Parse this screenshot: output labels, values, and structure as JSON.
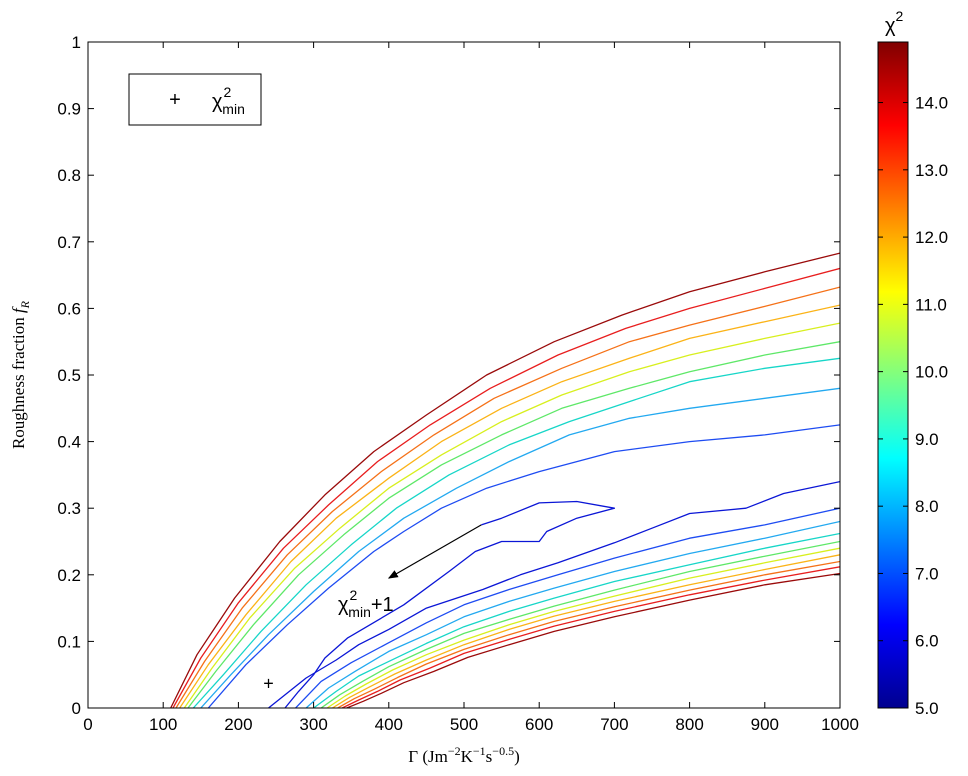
{
  "chart_data": {
    "type": "contour",
    "xlabel": {
      "main": "Γ  (Jm",
      "sup1": "−2",
      "mid1": "K",
      "sup2": "−1",
      "mid2": "s",
      "sup3": "−0.5",
      "end": ")"
    },
    "ylabel": {
      "main": "Roughness fraction ",
      "var": "f",
      "sub": "R"
    },
    "xlim": [
      0,
      1000
    ],
    "ylim": [
      0,
      1
    ],
    "x_ticks": [
      "0",
      "100",
      "200",
      "300",
      "400",
      "500",
      "600",
      "700",
      "800",
      "900",
      "1000"
    ],
    "y_ticks": [
      "0",
      "0.1",
      "0.2",
      "0.3",
      "0.4",
      "0.5",
      "0.6",
      "0.7",
      "0.8",
      "0.9",
      "1"
    ],
    "x_tick_values": [
      0,
      100,
      200,
      300,
      400,
      500,
      600,
      700,
      800,
      900,
      1000
    ],
    "y_tick_values": [
      0,
      0.1,
      0.2,
      0.3,
      0.4,
      0.5,
      0.6,
      0.7,
      0.8,
      0.9,
      1
    ],
    "colorbar": {
      "title": "χ",
      "title_sup": "2",
      "range": [
        5.0,
        14.9
      ],
      "ticks": [
        "5.0",
        "6.0",
        "7.0",
        "8.0",
        "9.0",
        "10.0",
        "11.0",
        "12.0",
        "13.0",
        "14.0"
      ],
      "tick_values": [
        5,
        6,
        7,
        8,
        9,
        10,
        11,
        12,
        13,
        14
      ],
      "colormap": "jet"
    },
    "minimum": {
      "x": 240,
      "y": 0.037,
      "marker": "+"
    },
    "legend": {
      "marker": "+",
      "label": "χ",
      "label_sup": "2",
      "label_sub": "min",
      "placement": "top-left"
    },
    "annotation": {
      "text": "χ",
      "sup": "2",
      "sub": "min",
      "suffix": "+1",
      "arrow_from": [
        523,
        0.275
      ],
      "arrow_to": [
        400,
        0.195
      ]
    },
    "contour_lines": [
      {
        "level": 5.9,
        "color": "#0b16d6",
        "points": [
          [
            240,
            0
          ],
          [
            290,
            0.045
          ],
          [
            330,
            0.072
          ],
          [
            360,
            0.095
          ],
          [
            400,
            0.118
          ],
          [
            450,
            0.15
          ],
          [
            525,
            0.178
          ],
          [
            575,
            0.2
          ],
          [
            625,
            0.218
          ],
          [
            700,
            0.248
          ],
          [
            750,
            0.27
          ],
          [
            800,
            0.292
          ],
          [
            875,
            0.3
          ],
          [
            925,
            0.322
          ],
          [
            1000,
            0.34
          ]
        ]
      },
      {
        "level": 5.9,
        "color": "#0b16d6",
        "points": [
          [
            523,
            0.275
          ],
          [
            550,
            0.285
          ],
          [
            600,
            0.308
          ],
          [
            650,
            0.31
          ],
          [
            700,
            0.3
          ],
          [
            650,
            0.285
          ],
          [
            610,
            0.265
          ],
          [
            600,
            0.25
          ],
          [
            550,
            0.25
          ],
          [
            515,
            0.235
          ],
          [
            480,
            0.205
          ],
          [
            420,
            0.155
          ],
          [
            375,
            0.125
          ],
          [
            345,
            0.105
          ],
          [
            315,
            0.075
          ],
          [
            300,
            0.05
          ],
          [
            280,
            0.025
          ],
          [
            262,
            0
          ]
        ]
      },
      {
        "level": 6.6,
        "color": "#1e4cf2",
        "points": [
          [
            160,
            0
          ],
          [
            210,
            0.065
          ],
          [
            265,
            0.125
          ],
          [
            320,
            0.18
          ],
          [
            380,
            0.235
          ],
          [
            420,
            0.265
          ],
          [
            470,
            0.3
          ],
          [
            530,
            0.33
          ],
          [
            600,
            0.355
          ],
          [
            650,
            0.37
          ],
          [
            700,
            0.385
          ],
          [
            800,
            0.4
          ],
          [
            900,
            0.41
          ],
          [
            1000,
            0.425
          ]
        ]
      },
      {
        "level": 6.6,
        "color": "#1e4cf2",
        "points": [
          [
            276,
            0
          ],
          [
            310,
            0.04
          ],
          [
            350,
            0.068
          ],
          [
            400,
            0.098
          ],
          [
            450,
            0.128
          ],
          [
            500,
            0.155
          ],
          [
            560,
            0.178
          ],
          [
            625,
            0.2
          ],
          [
            700,
            0.225
          ],
          [
            800,
            0.255
          ],
          [
            900,
            0.275
          ],
          [
            1000,
            0.3
          ]
        ]
      },
      {
        "level": 7.6,
        "color": "#23a9f0",
        "points": [
          [
            150,
            0
          ],
          [
            190,
            0.05
          ],
          [
            240,
            0.11
          ],
          [
            300,
            0.175
          ],
          [
            360,
            0.235
          ],
          [
            420,
            0.285
          ],
          [
            490,
            0.33
          ],
          [
            560,
            0.37
          ],
          [
            640,
            0.41
          ],
          [
            720,
            0.435
          ],
          [
            800,
            0.45
          ],
          [
            900,
            0.465
          ],
          [
            1000,
            0.48
          ]
        ]
      },
      {
        "level": 7.6,
        "color": "#23a9f0",
        "points": [
          [
            290,
            0
          ],
          [
            320,
            0.03
          ],
          [
            355,
            0.055
          ],
          [
            400,
            0.085
          ],
          [
            450,
            0.11
          ],
          [
            500,
            0.137
          ],
          [
            560,
            0.16
          ],
          [
            620,
            0.18
          ],
          [
            700,
            0.205
          ],
          [
            800,
            0.232
          ],
          [
            900,
            0.255
          ],
          [
            1000,
            0.28
          ]
        ]
      },
      {
        "level": 8.6,
        "color": "#17d6c8",
        "points": [
          [
            140,
            0
          ],
          [
            180,
            0.05
          ],
          [
            230,
            0.115
          ],
          [
            290,
            0.185
          ],
          [
            350,
            0.245
          ],
          [
            410,
            0.3
          ],
          [
            480,
            0.35
          ],
          [
            560,
            0.395
          ],
          [
            640,
            0.43
          ],
          [
            720,
            0.46
          ],
          [
            800,
            0.49
          ],
          [
            900,
            0.51
          ],
          [
            1000,
            0.525
          ]
        ]
      },
      {
        "level": 8.6,
        "color": "#17d6c8",
        "points": [
          [
            300,
            0
          ],
          [
            330,
            0.025
          ],
          [
            360,
            0.048
          ],
          [
            400,
            0.07
          ],
          [
            450,
            0.097
          ],
          [
            500,
            0.122
          ],
          [
            560,
            0.145
          ],
          [
            620,
            0.165
          ],
          [
            700,
            0.19
          ],
          [
            800,
            0.215
          ],
          [
            900,
            0.24
          ],
          [
            1000,
            0.262
          ]
        ]
      },
      {
        "level": 9.6,
        "color": "#5ee868",
        "points": [
          [
            133,
            0
          ],
          [
            170,
            0.055
          ],
          [
            220,
            0.125
          ],
          [
            280,
            0.2
          ],
          [
            340,
            0.26
          ],
          [
            400,
            0.315
          ],
          [
            470,
            0.365
          ],
          [
            550,
            0.41
          ],
          [
            630,
            0.45
          ],
          [
            720,
            0.48
          ],
          [
            800,
            0.505
          ],
          [
            900,
            0.53
          ],
          [
            1000,
            0.55
          ]
        ]
      },
      {
        "level": 9.6,
        "color": "#5ee868",
        "points": [
          [
            310,
            0
          ],
          [
            335,
            0.02
          ],
          [
            365,
            0.04
          ],
          [
            400,
            0.062
          ],
          [
            450,
            0.088
          ],
          [
            500,
            0.112
          ],
          [
            560,
            0.133
          ],
          [
            620,
            0.153
          ],
          [
            700,
            0.177
          ],
          [
            800,
            0.205
          ],
          [
            900,
            0.228
          ],
          [
            1000,
            0.25
          ]
        ]
      },
      {
        "level": 10.6,
        "color": "#d8ef1e",
        "points": [
          [
            128,
            0
          ],
          [
            165,
            0.06
          ],
          [
            215,
            0.135
          ],
          [
            275,
            0.21
          ],
          [
            335,
            0.27
          ],
          [
            400,
            0.33
          ],
          [
            470,
            0.38
          ],
          [
            550,
            0.43
          ],
          [
            630,
            0.47
          ],
          [
            720,
            0.505
          ],
          [
            800,
            0.53
          ],
          [
            900,
            0.555
          ],
          [
            1000,
            0.578
          ]
        ]
      },
      {
        "level": 10.6,
        "color": "#d8ef1e",
        "points": [
          [
            318,
            0
          ],
          [
            342,
            0.018
          ],
          [
            370,
            0.036
          ],
          [
            405,
            0.057
          ],
          [
            450,
            0.08
          ],
          [
            500,
            0.102
          ],
          [
            560,
            0.125
          ],
          [
            620,
            0.145
          ],
          [
            700,
            0.168
          ],
          [
            800,
            0.195
          ],
          [
            900,
            0.218
          ],
          [
            1000,
            0.24
          ]
        ]
      },
      {
        "level": 11.6,
        "color": "#fbb317",
        "points": [
          [
            122,
            0
          ],
          [
            160,
            0.065
          ],
          [
            210,
            0.14
          ],
          [
            270,
            0.22
          ],
          [
            330,
            0.285
          ],
          [
            400,
            0.345
          ],
          [
            470,
            0.4
          ],
          [
            550,
            0.45
          ],
          [
            630,
            0.49
          ],
          [
            720,
            0.525
          ],
          [
            800,
            0.555
          ],
          [
            900,
            0.58
          ],
          [
            1000,
            0.605
          ]
        ]
      },
      {
        "level": 11.6,
        "color": "#fbb317",
        "points": [
          [
            325,
            0
          ],
          [
            348,
            0.016
          ],
          [
            375,
            0.032
          ],
          [
            408,
            0.051
          ],
          [
            450,
            0.072
          ],
          [
            500,
            0.095
          ],
          [
            560,
            0.118
          ],
          [
            620,
            0.138
          ],
          [
            700,
            0.16
          ],
          [
            800,
            0.185
          ],
          [
            900,
            0.208
          ],
          [
            1000,
            0.23
          ]
        ]
      },
      {
        "level": 12.6,
        "color": "#f57118",
        "points": [
          [
            117,
            0
          ],
          [
            155,
            0.07
          ],
          [
            205,
            0.15
          ],
          [
            265,
            0.23
          ],
          [
            325,
            0.295
          ],
          [
            390,
            0.355
          ],
          [
            460,
            0.41
          ],
          [
            540,
            0.465
          ],
          [
            630,
            0.51
          ],
          [
            720,
            0.55
          ],
          [
            800,
            0.575
          ],
          [
            900,
            0.603
          ],
          [
            1000,
            0.632
          ]
        ]
      },
      {
        "level": 12.6,
        "color": "#f57118",
        "points": [
          [
            332,
            0
          ],
          [
            354,
            0.014
          ],
          [
            380,
            0.028
          ],
          [
            412,
            0.046
          ],
          [
            450,
            0.066
          ],
          [
            500,
            0.088
          ],
          [
            560,
            0.11
          ],
          [
            620,
            0.13
          ],
          [
            700,
            0.152
          ],
          [
            800,
            0.177
          ],
          [
            900,
            0.2
          ],
          [
            1000,
            0.22
          ]
        ]
      },
      {
        "level": 13.6,
        "color": "#e81e1e",
        "points": [
          [
            113,
            0
          ],
          [
            150,
            0.075
          ],
          [
            200,
            0.158
          ],
          [
            260,
            0.24
          ],
          [
            320,
            0.305
          ],
          [
            385,
            0.37
          ],
          [
            455,
            0.425
          ],
          [
            535,
            0.48
          ],
          [
            625,
            0.53
          ],
          [
            715,
            0.57
          ],
          [
            800,
            0.6
          ],
          [
            900,
            0.63
          ],
          [
            1000,
            0.66
          ]
        ]
      },
      {
        "level": 13.6,
        "color": "#e81e1e",
        "points": [
          [
            338,
            0
          ],
          [
            360,
            0.012
          ],
          [
            385,
            0.025
          ],
          [
            415,
            0.042
          ],
          [
            455,
            0.06
          ],
          [
            500,
            0.082
          ],
          [
            560,
            0.103
          ],
          [
            620,
            0.123
          ],
          [
            700,
            0.145
          ],
          [
            800,
            0.17
          ],
          [
            900,
            0.192
          ],
          [
            1000,
            0.212
          ]
        ]
      },
      {
        "level": 14.6,
        "color": "#9a0a0a",
        "points": [
          [
            110,
            0
          ],
          [
            145,
            0.08
          ],
          [
            195,
            0.165
          ],
          [
            255,
            0.25
          ],
          [
            315,
            0.32
          ],
          [
            380,
            0.385
          ],
          [
            450,
            0.44
          ],
          [
            530,
            0.5
          ],
          [
            620,
            0.55
          ],
          [
            710,
            0.59
          ],
          [
            800,
            0.625
          ],
          [
            900,
            0.655
          ],
          [
            1000,
            0.683
          ]
        ]
      },
      {
        "level": 14.6,
        "color": "#9a0a0a",
        "points": [
          [
            344,
            0
          ],
          [
            366,
            0.01
          ],
          [
            390,
            0.022
          ],
          [
            420,
            0.038
          ],
          [
            460,
            0.055
          ],
          [
            505,
            0.076
          ],
          [
            560,
            0.095
          ],
          [
            620,
            0.115
          ],
          [
            700,
            0.137
          ],
          [
            800,
            0.162
          ],
          [
            900,
            0.185
          ],
          [
            1000,
            0.202
          ]
        ]
      }
    ]
  }
}
